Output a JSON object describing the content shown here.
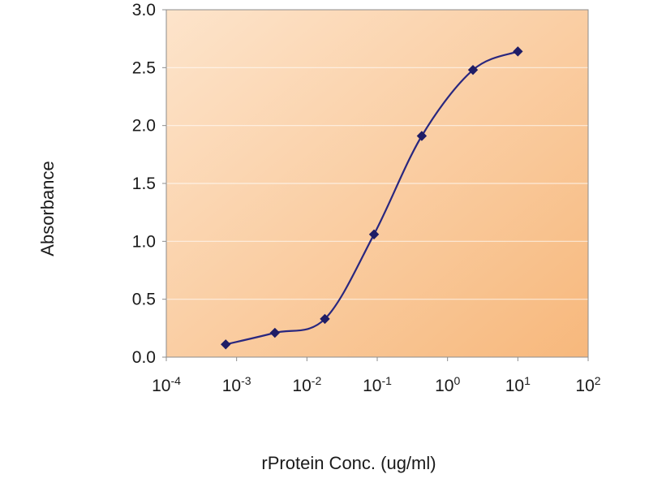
{
  "chart_data": {
    "type": "line",
    "title": "",
    "xlabel": "rProtein Conc. (ug/ml)",
    "ylabel": "Absorbance",
    "x_scale": "log",
    "xlim": [
      0.0001,
      100
    ],
    "ylim": [
      0,
      3
    ],
    "x_tick_base": "10",
    "x_tick_exponents": [
      -4,
      -3,
      -2,
      -1,
      0,
      1,
      2
    ],
    "y_ticks": [
      0,
      0.5,
      1,
      1.5,
      2,
      2.5,
      3
    ],
    "grid": "horizontal",
    "legend": "none",
    "series": [
      {
        "name": "Absorbance",
        "x": [
          0.0007,
          0.0035,
          0.018,
          0.09,
          0.43,
          2.3,
          10
        ],
        "y": [
          0.11,
          0.21,
          0.33,
          1.06,
          1.91,
          2.48,
          2.64
        ]
      }
    ],
    "colors": {
      "line": "#29277f",
      "marker": "#1f1d66",
      "plot_bg_top_left": "#fde4cb",
      "plot_bg_bottom_right": "#f7b87c",
      "gridline": "#ffffff",
      "border": "#8c8c8c",
      "tick": "#8c8c8c",
      "text": "#1a1a1a",
      "page_bg": "#ffffff"
    }
  }
}
